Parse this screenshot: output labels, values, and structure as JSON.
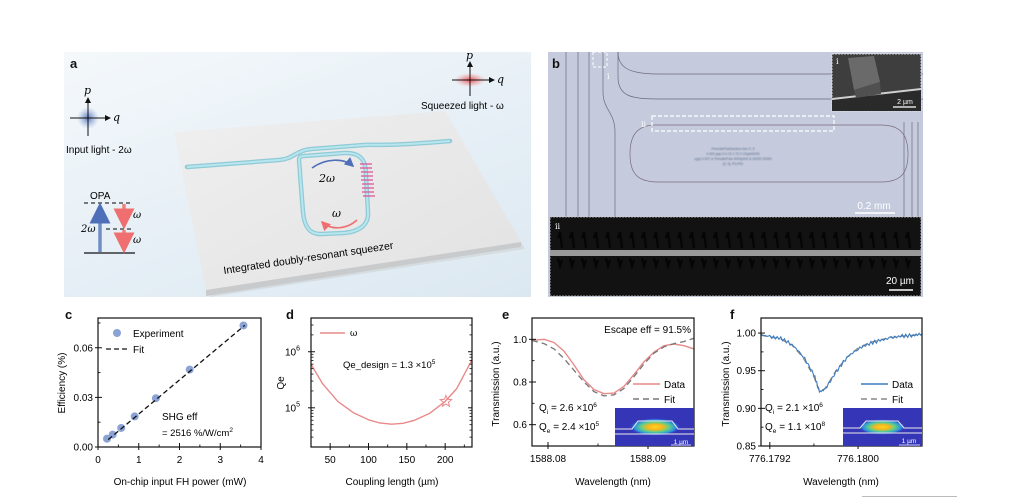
{
  "panels": {
    "a": {
      "letter": "a",
      "input_label": "Input light - 2ω",
      "squeezed_label": "Squeezed light - ω",
      "axis_p": "p",
      "axis_q": "q",
      "opa_title": "OPA",
      "opa_pump": "2ω",
      "opa_signal": "ω",
      "opa_idler": "ω",
      "ring_pump": "2ω",
      "ring_signal": "ω",
      "chip_label": "Integrated doubly-resonant squeezer",
      "colors": {
        "pump": "#6f8fc4",
        "signal": "#ef7f80",
        "waveguide": "#a8dbe4",
        "poling": "#e1559c"
      }
    },
    "b": {
      "letter": "b",
      "inset_i_label": "i",
      "inset_i_scale": "2 µm",
      "inset_ii_label": "ii",
      "marker_i": "i",
      "marker_ii": "ii",
      "scale_main": "0.2 mm",
      "scale_ii": "20 µm",
      "chip_text": [
        "PeriodicPoleSection-Dev 0, 5",
        "0.000 gap 0.0 C0 1 T0 0 ChipId0000",
        "ogrp 0.007 & PeriodicPole 0000p000 & 00000 00000",
        "[0, 0], P0,P00"
      ]
    }
  },
  "chart_data": [
    {
      "id": "c",
      "letter": "c",
      "type": "scatter",
      "xlabel": "On-chip input FH power (mW)",
      "ylabel": "Efficiency (%)",
      "xlim": [
        0,
        4
      ],
      "ylim": [
        0,
        0.078
      ],
      "xticks": [
        "0",
        "1",
        "2",
        "3",
        "4"
      ],
      "xtick_values": [
        0,
        1,
        2,
        3,
        4
      ],
      "yticks": [
        "0.00",
        "0.03",
        "0.06"
      ],
      "ytick_values": [
        0,
        0.03,
        0.06
      ],
      "series": [
        {
          "name": "Experiment",
          "style": "markers",
          "color": "#8aa3d4",
          "x": [
            0.22,
            0.36,
            0.57,
            0.9,
            1.42,
            2.25,
            3.57
          ],
          "y": [
            0.005,
            0.0075,
            0.0115,
            0.0185,
            0.0295,
            0.0468,
            0.0735
          ]
        },
        {
          "name": "Fit",
          "style": "dashed",
          "color": "#111111",
          "x": [
            0.25,
            3.6
          ],
          "y": [
            0.0045,
            0.0735
          ]
        }
      ],
      "annotations": [
        "SHG eff",
        "= 2516 %/W/cm",
        "2"
      ],
      "legend_position": "top-left"
    },
    {
      "id": "d",
      "letter": "d",
      "type": "line",
      "xlabel": "Coupling length (µm)",
      "ylabel": "Qe",
      "xscale": "linear",
      "yscale": "log",
      "xlim": [
        25,
        235
      ],
      "ylim": [
        20000,
        4000000
      ],
      "xticks": [
        "50",
        "100",
        "150",
        "200"
      ],
      "xtick_values": [
        50,
        100,
        150,
        200
      ],
      "yticks": [
        "10",
        "10"
      ],
      "ytick_exponents": [
        "5",
        "6"
      ],
      "ytick_values": [
        100000,
        1000000
      ],
      "series": [
        {
          "name": "ω",
          "color": "#e88a8a",
          "x": [
            25,
            40,
            60,
            80,
            100,
            115,
            130,
            145,
            160,
            180,
            200,
            215,
            235
          ],
          "y": [
            600000,
            270000,
            130000,
            82000,
            61000,
            53500,
            51000,
            53000,
            60000,
            80000,
            130000,
            220000,
            720000
          ]
        }
      ],
      "marker": {
        "shape": "star",
        "x": 201,
        "y": 130000
      },
      "annotation": "Qe_design = 1.3 ×10",
      "annotation_exp": "5",
      "legend_position": "top-left"
    },
    {
      "id": "e",
      "letter": "e",
      "type": "line",
      "xlabel": "Wavelength (nm)",
      "ylabel": "Transmission (a.u.)",
      "xlim": [
        1588.0784,
        1588.0946
      ],
      "ylim": [
        0.5,
        1.1
      ],
      "xticks": [
        "1588.08",
        "1588.09"
      ],
      "xtick_values": [
        1588.08,
        1588.09
      ],
      "yticks": [
        "0.6",
        "0.8",
        "1.0"
      ],
      "ytick_values": [
        0.6,
        0.8,
        1.0
      ],
      "series": [
        {
          "name": "Data",
          "style": "solid",
          "color": "#e88a8a",
          "x": [
            1588.0784,
            1588.0796,
            1588.0806,
            1588.0816,
            1588.0826,
            1588.0836,
            1588.0846,
            1588.0856,
            1588.0866,
            1588.0876,
            1588.0886,
            1588.0896,
            1588.0906,
            1588.0916,
            1588.0926,
            1588.0936,
            1588.0946
          ],
          "y": [
            0.995,
            1.0,
            0.985,
            0.945,
            0.88,
            0.81,
            0.765,
            0.745,
            0.748,
            0.78,
            0.835,
            0.895,
            0.94,
            0.97,
            0.978,
            0.97,
            0.955
          ]
        },
        {
          "name": "Fit",
          "style": "dashed",
          "color": "#777777",
          "x": [
            1588.0784,
            1588.0796,
            1588.0806,
            1588.0816,
            1588.0826,
            1588.0836,
            1588.0846,
            1588.0856,
            1588.0866,
            1588.0876,
            1588.0886,
            1588.0896,
            1588.0906,
            1588.0916,
            1588.0926,
            1588.0936,
            1588.0946
          ],
          "y": [
            0.995,
            0.98,
            0.955,
            0.91,
            0.855,
            0.8,
            0.755,
            0.735,
            0.74,
            0.77,
            0.825,
            0.885,
            0.935,
            0.965,
            0.98,
            0.99,
            1.005
          ]
        }
      ],
      "annotations": {
        "escape": "Escape eff = 91.5%",
        "qi": "= 2.6 ×10",
        "qi_exp": "6",
        "qe": "= 2.4 ×10",
        "qe_exp": "5",
        "q": "Q",
        "i": "i",
        "e": "e"
      },
      "inset_scale": "1 µm",
      "legend_position": "center-right"
    },
    {
      "id": "f",
      "letter": "f",
      "type": "line",
      "xlabel": "Wavelength (nm)",
      "ylabel": "Transmission (a.u.)",
      "xlim": [
        776.17912,
        776.18058
      ],
      "ylim": [
        0.85,
        1.02
      ],
      "xticks": [
        "776.1792",
        "776.1800"
      ],
      "xtick_values": [
        776.1792,
        776.18
      ],
      "yticks": [
        "0.85",
        "0.90",
        "0.95",
        "1.00"
      ],
      "ytick_values": [
        0.85,
        0.9,
        0.95,
        1.0
      ],
      "series": [
        {
          "name": "Data",
          "style": "solid",
          "color": "#3b7bbf",
          "x": [
            776.17912,
            776.1792,
            776.1793,
            776.1794,
            776.1795,
            776.1796,
            776.17965,
            776.1797,
            776.1798,
            776.1799,
            776.18,
            776.1801,
            776.1802,
            776.1803,
            776.1804,
            776.1805,
            776.18058
          ],
          "y": [
            0.998,
            0.995,
            0.993,
            0.985,
            0.97,
            0.945,
            0.922,
            0.925,
            0.948,
            0.968,
            0.979,
            0.986,
            0.99,
            0.994,
            0.996,
            0.997,
            0.999
          ]
        },
        {
          "name": "Fit",
          "style": "dashed",
          "color": "#888888",
          "x": [
            776.17912,
            776.1792,
            776.1793,
            776.1794,
            776.1795,
            776.1796,
            776.17965,
            776.1797,
            776.1798,
            776.1799,
            776.18,
            776.1801,
            776.1802,
            776.1803,
            776.1804,
            776.1805,
            776.18058
          ],
          "y": [
            0.997,
            0.995,
            0.992,
            0.984,
            0.968,
            0.942,
            0.923,
            0.926,
            0.95,
            0.968,
            0.98,
            0.987,
            0.991,
            0.994,
            0.996,
            0.997,
            0.998
          ]
        }
      ],
      "annotations": {
        "qi": "= 2.1 ×10",
        "qi_exp": "6",
        "qe": "= 1.1 ×10",
        "qe_exp": "8",
        "q": "Q",
        "i": "i",
        "e": "e"
      },
      "inset_scale": "1 µm",
      "legend_position": "center-right"
    }
  ]
}
